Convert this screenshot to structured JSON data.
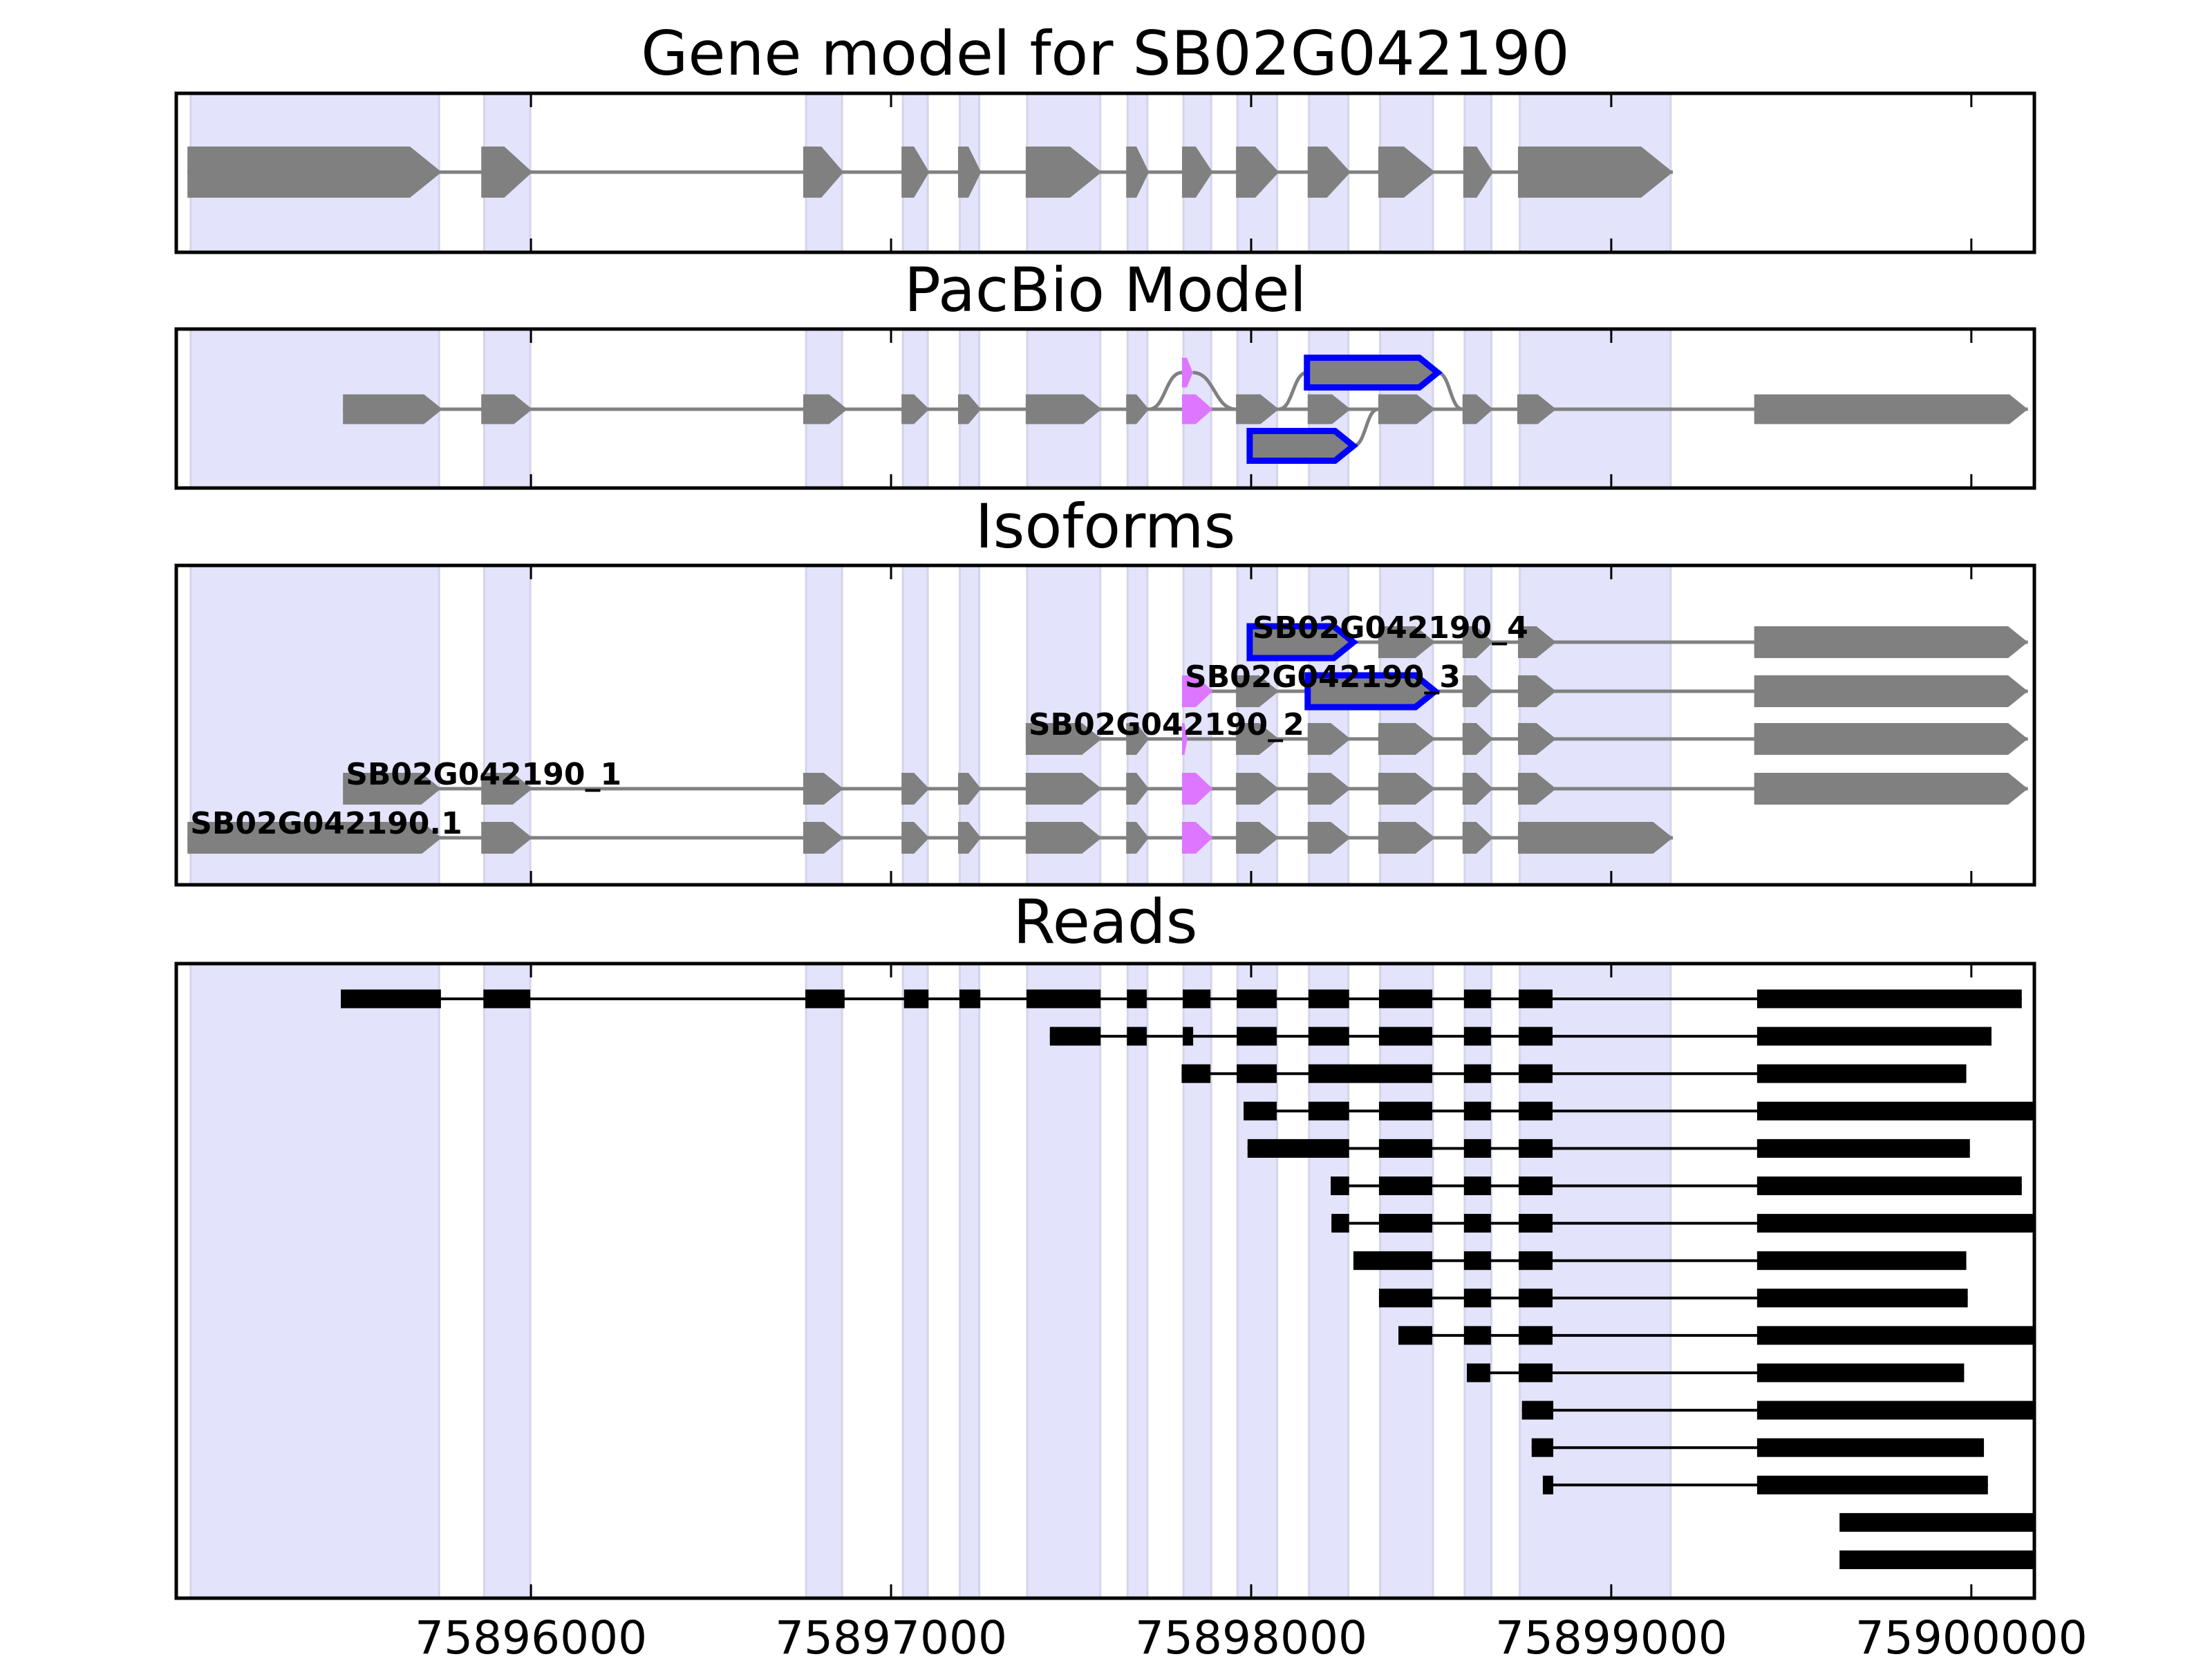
{
  "figure": {
    "background": "#ffffff"
  },
  "colors": {
    "exon": "#808080",
    "intron": "#808080",
    "alt_exon_fill": "#DD77FF",
    "alt_exon_outline": "#0000FF",
    "read": "#000000",
    "shade": "#E3E3FB",
    "shade_edge": "#D4D4EA",
    "frame": "#000000"
  },
  "chart_data": {
    "type": "bar",
    "orientation": "horizontal-intervals",
    "xlabel": "",
    "ylabel": "",
    "xlim": [
      75895015,
      75900175
    ],
    "xticks": [
      75896000,
      75897000,
      75898000,
      75899000,
      75900000
    ],
    "xtick_labels": [
      "75896000",
      "75897000",
      "75898000",
      "75899000",
      "75900000"
    ],
    "grid": false,
    "legend": "none",
    "shaded_regions": [
      [
        75895055,
        75895745
      ],
      [
        75895870,
        75895998
      ],
      [
        75896764,
        75896864
      ],
      [
        75897033,
        75897102
      ],
      [
        75897191,
        75897245
      ],
      [
        75897378,
        75897581
      ],
      [
        75897657,
        75897712
      ],
      [
        75897812,
        75897889
      ],
      [
        75897962,
        75898072
      ],
      [
        75898161,
        75898270
      ],
      [
        75898358,
        75898505
      ],
      [
        75898593,
        75898667
      ],
      [
        75898746,
        75899165
      ]
    ],
    "panels": [
      {
        "id": "gene-model",
        "title": "Gene model for SB02G042190",
        "rows": [
          {
            "label": "",
            "exons": [
              {
                "start": 75895046,
                "end": 75895752
              },
              {
                "start": 75895862,
                "end": 75896004
              },
              {
                "start": 75896756,
                "end": 75896868
              },
              {
                "start": 75897029,
                "end": 75897106
              },
              {
                "start": 75897186,
                "end": 75897250
              },
              {
                "start": 75897374,
                "end": 75897585
              },
              {
                "start": 75897653,
                "end": 75897716
              },
              {
                "start": 75897808,
                "end": 75897893
              },
              {
                "start": 75897958,
                "end": 75898077
              },
              {
                "start": 75898157,
                "end": 75898276
              },
              {
                "start": 75898353,
                "end": 75898511
              },
              {
                "start": 75898589,
                "end": 75898672
              },
              {
                "start": 75898741,
                "end": 75899171
              }
            ]
          }
        ]
      },
      {
        "id": "pacbio-model",
        "title": "PacBio Model",
        "main": [
          {
            "start": 75895478,
            "end": 75895754
          },
          {
            "start": 75895862,
            "end": 75896004
          },
          {
            "start": 75896756,
            "end": 75896879
          },
          {
            "start": 75897029,
            "end": 75897106
          },
          {
            "start": 75897186,
            "end": 75897250
          },
          {
            "start": 75897374,
            "end": 75897585
          },
          {
            "start": 75897653,
            "end": 75897716
          },
          {
            "start": 75897808,
            "end": 75897893,
            "kind": "alt"
          },
          {
            "start": 75897958,
            "end": 75898077
          },
          {
            "start": 75898157,
            "end": 75898276
          },
          {
            "start": 75898353,
            "end": 75898511
          },
          {
            "start": 75898587,
            "end": 75898672
          },
          {
            "start": 75898739,
            "end": 75898847
          },
          {
            "start": 75899397,
            "end": 75900157
          }
        ],
        "upper": [
          {
            "start": 75897808,
            "end": 75897838,
            "kind": "alt"
          },
          {
            "start": 75898155,
            "end": 75898518,
            "kind": "outlined"
          }
        ],
        "lower": [
          {
            "start": 75897996,
            "end": 75898284,
            "kind": "outlined"
          }
        ]
      },
      {
        "id": "isoforms",
        "title": "Isoforms",
        "rows": [
          {
            "label": "SB02G042190_4",
            "exons": [
              {
                "start": 75897996,
                "end": 75898284,
                "kind": "outlined"
              },
              {
                "start": 75898353,
                "end": 75898511
              },
              {
                "start": 75898587,
                "end": 75898672
              },
              {
                "start": 75898741,
                "end": 75898847
              },
              {
                "start": 75899397,
                "end": 75900157
              }
            ]
          },
          {
            "label": "SB02G042190_3",
            "exons": [
              {
                "start": 75897808,
                "end": 75897893,
                "kind": "alt"
              },
              {
                "start": 75897958,
                "end": 75898077
              },
              {
                "start": 75898157,
                "end": 75898511,
                "kind": "outlined"
              },
              {
                "start": 75898587,
                "end": 75898672
              },
              {
                "start": 75898741,
                "end": 75898847
              },
              {
                "start": 75899397,
                "end": 75900157
              }
            ]
          },
          {
            "label": "SB02G042190_2",
            "exons": [
              {
                "start": 75897374,
                "end": 75897585
              },
              {
                "start": 75897653,
                "end": 75897716
              },
              {
                "start": 75897808,
                "end": 75897823,
                "kind": "alt"
              },
              {
                "start": 75897958,
                "end": 75898077
              },
              {
                "start": 75898157,
                "end": 75898276
              },
              {
                "start": 75898353,
                "end": 75898511
              },
              {
                "start": 75898587,
                "end": 75898672
              },
              {
                "start": 75898741,
                "end": 75898847
              },
              {
                "start": 75899397,
                "end": 75900157
              }
            ]
          },
          {
            "label": "SB02G042190_1",
            "exons": [
              {
                "start": 75895478,
                "end": 75895750
              },
              {
                "start": 75895862,
                "end": 75896004
              },
              {
                "start": 75896756,
                "end": 75896868
              },
              {
                "start": 75897029,
                "end": 75897106
              },
              {
                "start": 75897186,
                "end": 75897250
              },
              {
                "start": 75897374,
                "end": 75897585
              },
              {
                "start": 75897653,
                "end": 75897716
              },
              {
                "start": 75897808,
                "end": 75897893,
                "kind": "alt"
              },
              {
                "start": 75897958,
                "end": 75898077
              },
              {
                "start": 75898157,
                "end": 75898276
              },
              {
                "start": 75898353,
                "end": 75898511
              },
              {
                "start": 75898587,
                "end": 75898672
              },
              {
                "start": 75898741,
                "end": 75898847
              },
              {
                "start": 75899397,
                "end": 75900157
              }
            ]
          },
          {
            "label": "SB02G042190.1",
            "exons": [
              {
                "start": 75895046,
                "end": 75895752
              },
              {
                "start": 75895862,
                "end": 75896004
              },
              {
                "start": 75896756,
                "end": 75896868
              },
              {
                "start": 75897029,
                "end": 75897106
              },
              {
                "start": 75897186,
                "end": 75897250
              },
              {
                "start": 75897374,
                "end": 75897585
              },
              {
                "start": 75897653,
                "end": 75897716
              },
              {
                "start": 75897808,
                "end": 75897893,
                "kind": "alt"
              },
              {
                "start": 75897958,
                "end": 75898077
              },
              {
                "start": 75898157,
                "end": 75898276
              },
              {
                "start": 75898353,
                "end": 75898511
              },
              {
                "start": 75898587,
                "end": 75898672
              },
              {
                "start": 75898741,
                "end": 75899171
              }
            ]
          }
        ]
      },
      {
        "id": "reads",
        "title": "Reads",
        "reads": [
          [
            [
              75895472,
              75895750
            ],
            [
              75895868,
              75895998
            ],
            [
              75896762,
              75896871
            ],
            [
              75897036,
              75897104
            ],
            [
              75897190,
              75897248
            ],
            [
              75897376,
              75897582
            ],
            [
              75897655,
              75897710
            ],
            [
              75897810,
              75897887
            ],
            [
              75897960,
              75898071
            ],
            [
              75898159,
              75898272
            ],
            [
              75898355,
              75898503
            ],
            [
              75898591,
              75898666
            ],
            [
              75898743,
              75898837
            ],
            [
              75899405,
              75900140
            ]
          ],
          [
            [
              75897441,
              75897582
            ],
            [
              75897655,
              75897710
            ],
            [
              75897810,
              75897839
            ],
            [
              75897960,
              75898071
            ],
            [
              75898159,
              75898272
            ],
            [
              75898355,
              75898503
            ],
            [
              75898591,
              75898666
            ],
            [
              75898743,
              75898837
            ],
            [
              75899405,
              75900056
            ]
          ],
          [
            [
              75897807,
              75897887
            ],
            [
              75897960,
              75898071
            ],
            [
              75898159,
              75898503
            ],
            [
              75898591,
              75898666
            ],
            [
              75898743,
              75898837
            ],
            [
              75899405,
              75899986
            ]
          ],
          [
            [
              75897979,
              75898071
            ],
            [
              75898159,
              75898272
            ],
            [
              75898355,
              75898503
            ],
            [
              75898591,
              75898666
            ],
            [
              75898743,
              75898837
            ],
            [
              75899405,
              75900175
            ]
          ],
          [
            [
              75897990,
              75898272
            ],
            [
              75898355,
              75898503
            ],
            [
              75898591,
              75898666
            ],
            [
              75898743,
              75898837
            ],
            [
              75899405,
              75899996
            ]
          ],
          [
            [
              75898221,
              75898272
            ],
            [
              75898355,
              75898503
            ],
            [
              75898591,
              75898666
            ],
            [
              75898743,
              75898837
            ],
            [
              75899405,
              75900140
            ]
          ],
          [
            [
              75898223,
              75898272
            ],
            [
              75898355,
              75898503
            ],
            [
              75898591,
              75898666
            ],
            [
              75898743,
              75898837
            ],
            [
              75899405,
              75900175
            ]
          ],
          [
            [
              75898284,
              75898503
            ],
            [
              75898591,
              75898666
            ],
            [
              75898743,
              75898837
            ],
            [
              75899405,
              75899986
            ]
          ],
          [
            [
              75898355,
              75898503
            ],
            [
              75898591,
              75898666
            ],
            [
              75898743,
              75898837
            ],
            [
              75899405,
              75899990
            ]
          ],
          [
            [
              75898409,
              75898503
            ],
            [
              75898591,
              75898666
            ],
            [
              75898743,
              75898837
            ],
            [
              75899405,
              75900175
            ]
          ],
          [
            [
              75898599,
              75898664
            ],
            [
              75898743,
              75898837
            ],
            [
              75899405,
              75899980
            ]
          ],
          [
            [
              75898752,
              75898839
            ],
            [
              75899405,
              75900175
            ]
          ],
          [
            [
              75898779,
              75898839
            ],
            [
              75899405,
              75900035
            ]
          ],
          [
            [
              75898810,
              75898839
            ],
            [
              75899405,
              75900046
            ]
          ],
          [
            [
              75899634,
              75900175
            ]
          ],
          [
            [
              75899634,
              75900175
            ]
          ]
        ]
      }
    ]
  }
}
